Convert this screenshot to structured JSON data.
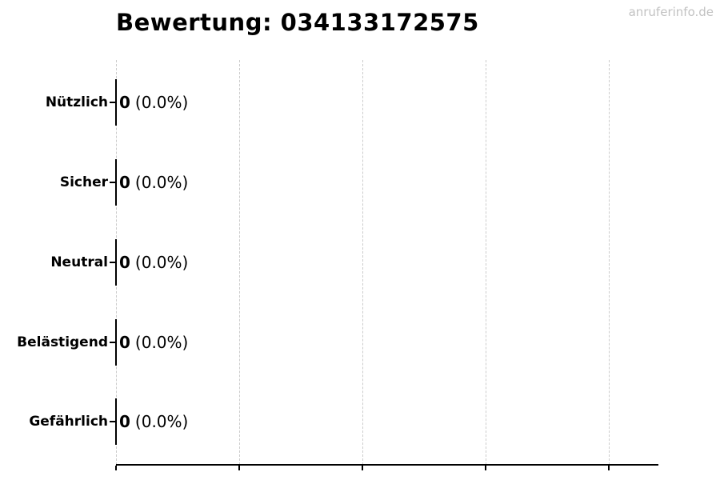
{
  "header": {
    "title": "Bewertung: 034133172575",
    "watermark": "anruferinfo.de"
  },
  "colors": {
    "background": "#ffffff",
    "text": "#000000",
    "grid": "#cccccc",
    "axis": "#000000",
    "watermark": "#c2c2c2"
  },
  "chart_data": {
    "type": "bar",
    "orientation": "horizontal",
    "title": "Bewertung: 034133172575",
    "categories": [
      "Nützlich",
      "Sicher",
      "Neutral",
      "Belästigend",
      "Gefährlich"
    ],
    "values": [
      0,
      0,
      0,
      0,
      0
    ],
    "bar_labels": [
      "0 (0.0%)",
      "0 (0.0%)",
      "0 (0.0%)",
      "0 (0.0%)",
      "0 (0.0%)"
    ],
    "xlabel": "",
    "ylabel": "",
    "xlim": [
      0,
      4.4
    ],
    "x_gridline_count": 5,
    "x_tick_labels": [],
    "grid": "vertical-dashed",
    "legend_position": "none"
  },
  "rows": [
    {
      "label": "Nützlich",
      "value": "0",
      "percent": "(0.0%)"
    },
    {
      "label": "Sicher",
      "value": "0",
      "percent": "(0.0%)"
    },
    {
      "label": "Neutral",
      "value": "0",
      "percent": "(0.0%)"
    },
    {
      "label": "Belästigend",
      "value": "0",
      "percent": "(0.0%)"
    },
    {
      "label": "Gefährlich",
      "value": "0",
      "percent": "(0.0%)"
    }
  ]
}
